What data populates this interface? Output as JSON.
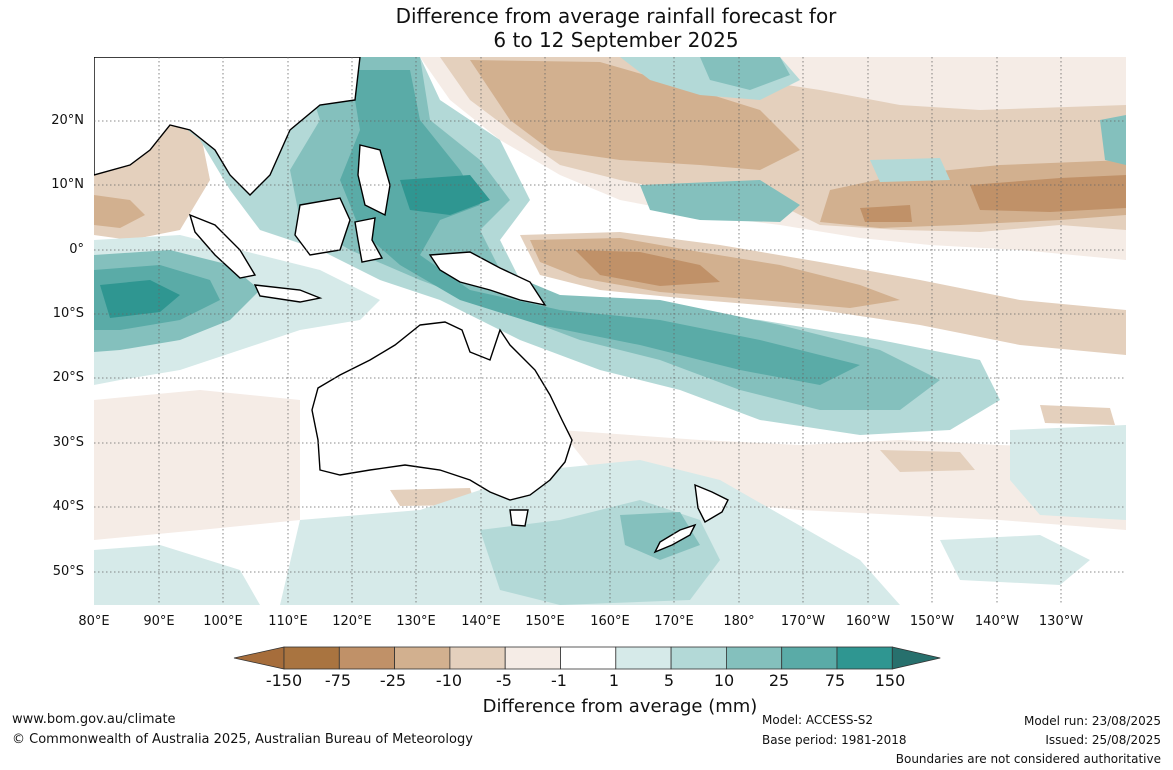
{
  "title": {
    "line1": "Difference from average rainfall forecast for",
    "line2": "6 to 12 September 2025"
  },
  "lat_ticks": [
    "20°N",
    "10°N",
    "0°",
    "10°S",
    "20°S",
    "30°S",
    "40°S",
    "50°S"
  ],
  "lon_ticks": [
    "80°E",
    "90°E",
    "100°E",
    "110°E",
    "120°E",
    "130°E",
    "140°E",
    "150°E",
    "160°E",
    "170°E",
    "180°",
    "170°W",
    "160°W",
    "150°W",
    "140°W",
    "130°W"
  ],
  "legend": {
    "title": "Difference from average (mm)",
    "labels": [
      "-150",
      "-75",
      "-25",
      "-10",
      "-5",
      "-1",
      "1",
      "5",
      "10",
      "25",
      "75",
      "150"
    ],
    "colors": [
      "#a66d3b",
      "#a97440",
      "#c09168",
      "#d2b08f",
      "#e4d0bd",
      "#f5ece6",
      "#ffffff",
      "#d6eae9",
      "#b3d9d7",
      "#84c0bd",
      "#5aaba7",
      "#2f9691",
      "#27706d"
    ]
  },
  "footer": {
    "url": "www.bom.gov.au/climate",
    "copyright": "© Commonwealth of Australia 2025, Australian Bureau of Meteorology",
    "model": "Model: ACCESS-S2",
    "base_period": "Base period: 1981-2018",
    "model_run": "Model run: 23/08/2025",
    "issued": "Issued: 25/08/2025",
    "boundaries": "Boundaries are not considered authoritative"
  }
}
